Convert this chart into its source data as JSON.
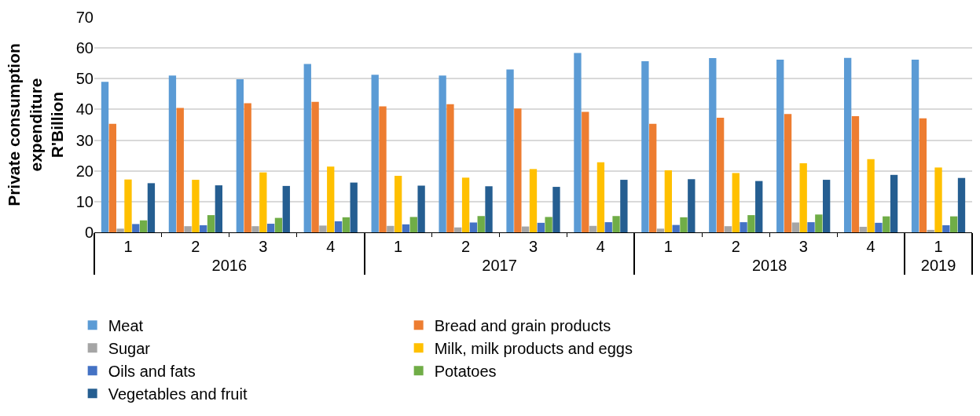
{
  "chart_data": {
    "type": "bar",
    "ylabel": "Private consumption expenditure R'Billion",
    "categories": [
      "1",
      "2",
      "3",
      "4",
      "1",
      "2",
      "3",
      "4",
      "1",
      "2",
      "3",
      "4",
      "1"
    ],
    "annotations": [
      "2016",
      "2017",
      "2018",
      "2019"
    ],
    "series": [
      {
        "name": "Meat",
        "color": "#5b9bd5",
        "values": [
          49,
          51,
          49.8,
          54.8,
          51.3,
          51,
          53,
          58.4,
          55.7,
          56.7,
          56.2,
          56.8,
          56.2
        ]
      },
      {
        "name": "Bread and grain products",
        "color": "#ed7d31",
        "values": [
          35.3,
          40.5,
          42,
          42.5,
          41,
          41.7,
          40.3,
          39.2,
          35.3,
          37.3,
          38.5,
          37.8,
          37.1
        ]
      },
      {
        "name": "Sugar",
        "color": "#a5a5a5",
        "values": [
          1.2,
          2,
          2,
          2.2,
          2.1,
          1.6,
          1.9,
          2.1,
          1.2,
          2,
          3.2,
          1.8,
          0.8
        ]
      },
      {
        "name": "Milk, milk products and eggs",
        "color": "#ffc000",
        "values": [
          17.2,
          17.1,
          19.5,
          21.4,
          18.4,
          17.8,
          20.6,
          22.8,
          20.2,
          19.3,
          22.5,
          23.8,
          21.1
        ]
      },
      {
        "name": "Oils and fats",
        "color": "#4472c4",
        "values": [
          2.7,
          2.3,
          2.8,
          3.6,
          2.6,
          3.2,
          3.1,
          3.3,
          2.4,
          3.3,
          3.3,
          3.1,
          2.3
        ]
      },
      {
        "name": "Potatoes",
        "color": "#70ad47",
        "values": [
          3.9,
          5.6,
          4.7,
          4.9,
          5,
          5.3,
          5,
          5.3,
          4.9,
          5.6,
          5.8,
          5.2,
          5.2
        ]
      },
      {
        "name": "Vegetables and fruit",
        "color": "#255e91",
        "values": [
          16,
          15.3,
          15.1,
          16.2,
          15.2,
          15,
          14.8,
          17.1,
          17.3,
          16.7,
          17.1,
          18.7,
          17.7
        ]
      }
    ],
    "ylim": [
      0,
      70
    ],
    "yticks": [
      0,
      10,
      20,
      30,
      40,
      50,
      60,
      70
    ],
    "grid": "y",
    "legend": "bottom"
  }
}
